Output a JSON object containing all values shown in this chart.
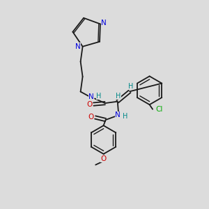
{
  "bg": "#dcdcdc",
  "bc": "#1a1a1a",
  "Nc": "#0000dd",
  "Oc": "#cc0000",
  "Clc": "#00aa00",
  "Hc": "#008888",
  "lw": 1.3,
  "lw_d": 1.0,
  "fs": 7.5,
  "figsize": [
    3.0,
    3.0
  ],
  "dpi": 100,
  "xlim": [
    0,
    10
  ],
  "ylim": [
    0,
    10
  ]
}
